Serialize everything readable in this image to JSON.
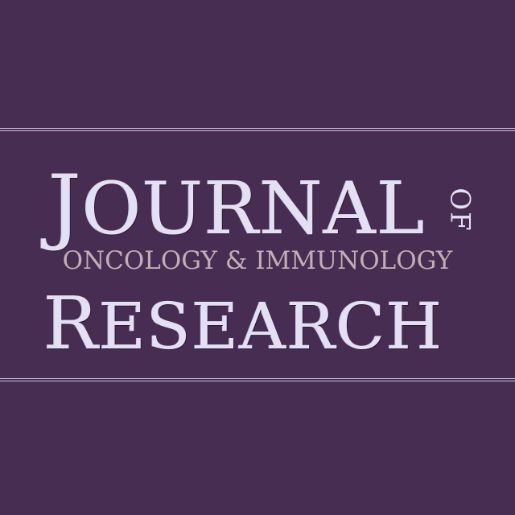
{
  "logo": {
    "line1": "JOURNAL",
    "line1_first": "J",
    "line1_rest": "OURNAL",
    "of": "OF",
    "subtitle": "ONCOLOGY & IMMUNOLOGY",
    "line3": "RESEARCH",
    "line3_first": "R",
    "line3_rest": "ESEARCH"
  },
  "colors": {
    "background": "#472d52",
    "title_text": "#e4e0f4",
    "subtitle_text": "#c2aeb6",
    "rules": "#c9c3df"
  }
}
